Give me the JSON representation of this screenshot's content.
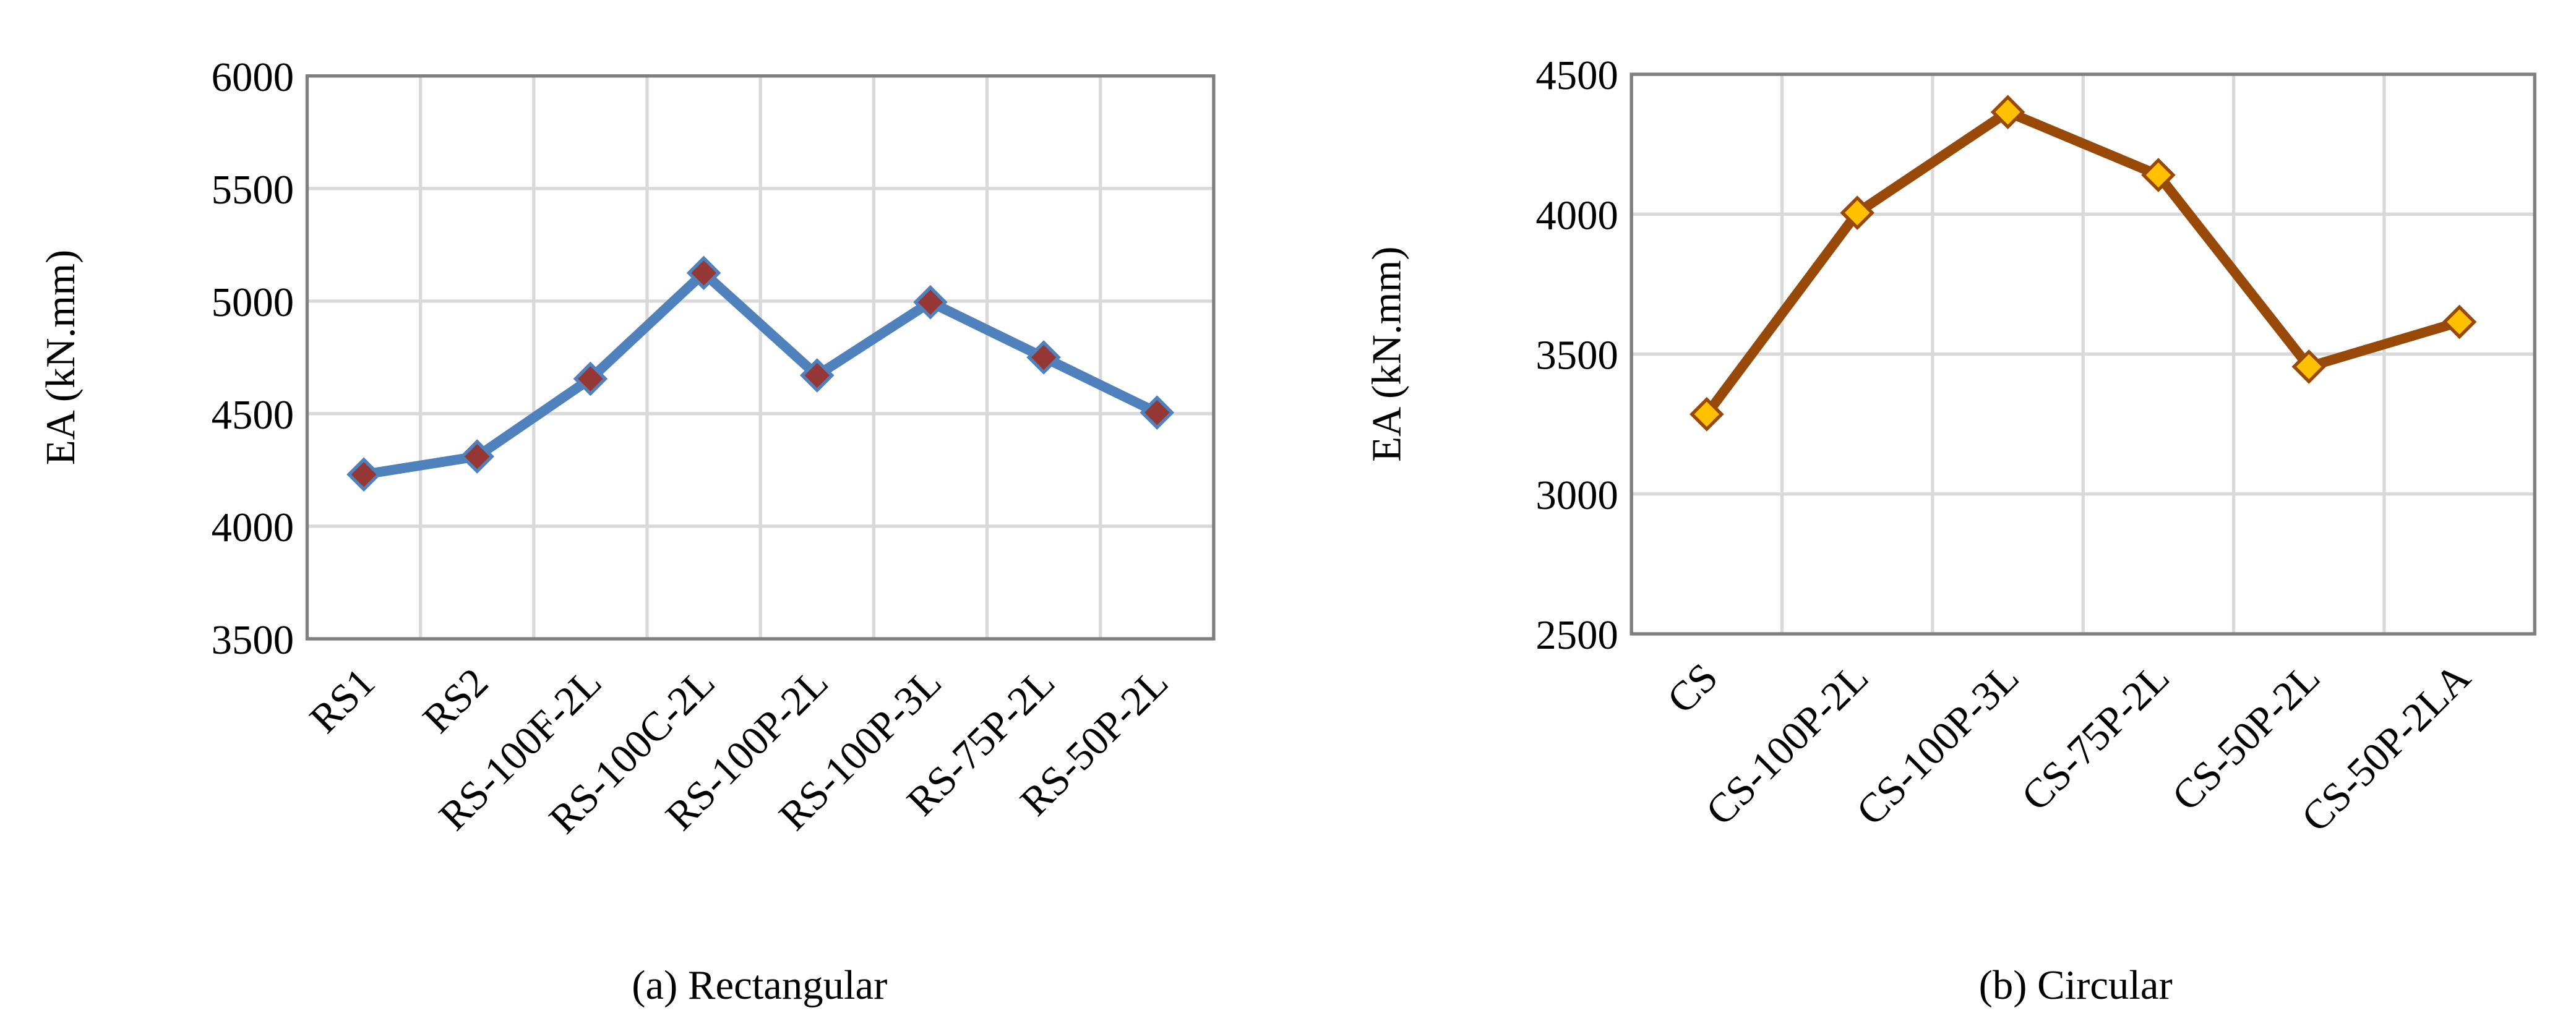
{
  "chart_data": [
    {
      "type": "line",
      "ylabel": "EA (kN.mm)",
      "caption": "(a) Rectangular",
      "categories": [
        "RS1",
        "RS2",
        "RS-100F-2L",
        "RS-100C-2L",
        "RS-100P-2L",
        "RS-100P-3L",
        "RS-75P-2L",
        "RS-50P-2L"
      ],
      "values": [
        4230,
        4310,
        4655,
        5125,
        4670,
        4995,
        4750,
        4505
      ],
      "color": "#4f81bd",
      "marker_color": "#953735",
      "ylim": [
        3500,
        6000
      ],
      "yticks": [
        3500,
        4000,
        4500,
        5000,
        5500,
        6000
      ],
      "grid": true
    },
    {
      "type": "line",
      "ylabel": "EA (kN.mm)",
      "caption": "(b) Circular",
      "categories": [
        "CS",
        "CS-100P-2L",
        "CS-100P-3L",
        "CS-75P-2L",
        "CS-50P-2L",
        "CS-50P-2LA"
      ],
      "values": [
        3285,
        4005,
        4365,
        4140,
        3455,
        3615
      ],
      "color": "#984807",
      "marker_color": "#ffc000",
      "ylim": [
        2500,
        4500
      ],
      "yticks": [
        2500,
        3000,
        3500,
        4000,
        4500
      ],
      "grid": true
    }
  ]
}
